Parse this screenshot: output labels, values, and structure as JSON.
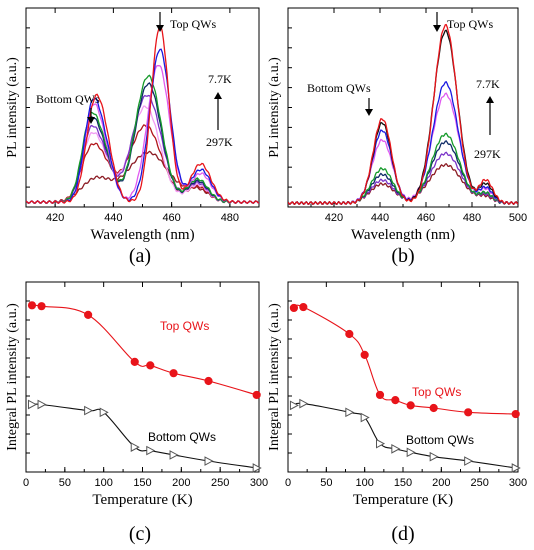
{
  "colors": {
    "red": "#e8141a",
    "red_dark": "#b1151b",
    "blue": "#1a1ae0",
    "blue_mid": "#4b61f0",
    "green": "#159a2a",
    "navy": "#0e2a66",
    "purple": "#7a33c8",
    "magenta": "#e05bf0",
    "pink": "#f29bf4",
    "maroon": "#8c1c24",
    "black": "#111111",
    "grey": "#333333"
  },
  "chart_data": [
    {
      "type": "line",
      "caption": "(a)",
      "xlabel": "Wavelength (nm)",
      "ylabel": "PL intensity (a.u.)",
      "xlim": [
        410,
        490
      ],
      "ylim": [
        0,
        1
      ],
      "xticks": [
        420,
        440,
        460,
        480
      ],
      "annotations": {
        "top": "Top QWs",
        "bottom": "Bottom QWs",
        "temp_high": "7.7K",
        "temp_low": "297K"
      },
      "temperature_order": "7.7K at top to 297K at bottom (arrow)",
      "series_colors": [
        "red",
        "blue",
        "magenta",
        "green",
        "navy",
        "purple",
        "pink",
        "red_dark",
        "maroon"
      ],
      "series": [
        {
          "color": "red",
          "baseline": 0.01,
          "peaks": [
            [
              433,
              0.4,
              2.8
            ],
            [
              437,
              0.3,
              3.0
            ],
            [
              456,
              0.92,
              3.0
            ],
            [
              470,
              0.2,
              3.5
            ]
          ]
        },
        {
          "color": "blue",
          "baseline": 0.01,
          "peaks": [
            [
              432.5,
              0.44,
              2.8
            ],
            [
              437,
              0.26,
              3.0
            ],
            [
              456,
              0.8,
              3.5
            ],
            [
              470,
              0.17,
              3.5
            ]
          ]
        },
        {
          "color": "magenta",
          "baseline": 0.01,
          "peaks": [
            [
              432.5,
              0.42,
              2.8
            ],
            [
              437,
              0.24,
              3.0
            ],
            [
              455.5,
              0.72,
              3.8
            ],
            [
              470,
              0.15,
              3.5
            ]
          ]
        },
        {
          "color": "green",
          "baseline": 0.01,
          "peaks": [
            [
              432,
              0.4,
              3.0
            ],
            [
              437,
              0.22,
              3.0
            ],
            [
              452,
              0.66,
              4.5
            ],
            [
              469,
              0.12,
              3.5
            ]
          ]
        },
        {
          "color": "navy",
          "baseline": 0.01,
          "peaks": [
            [
              432,
              0.38,
              3.0
            ],
            [
              437,
              0.21,
              3.0
            ],
            [
              452,
              0.62,
              4.5
            ],
            [
              469,
              0.11,
              3.5
            ]
          ]
        },
        {
          "color": "purple",
          "baseline": 0.01,
          "peaks": [
            [
              432,
              0.34,
              3.0
            ],
            [
              437,
              0.19,
              3.0
            ],
            [
              451.5,
              0.56,
              5.0
            ],
            [
              469,
              0.1,
              3.5
            ]
          ]
        },
        {
          "color": "pink",
          "baseline": 0.01,
          "peaks": [
            [
              432,
              0.3,
              3.2
            ],
            [
              437,
              0.17,
              3.2
            ],
            [
              451,
              0.5,
              5.0
            ],
            [
              469,
              0.09,
              3.5
            ]
          ]
        },
        {
          "color": "red_dark",
          "baseline": 0.01,
          "peaks": [
            [
              432,
              0.24,
              3.5
            ],
            [
              437,
              0.14,
              3.5
            ],
            [
              451,
              0.4,
              5.5
            ],
            [
              469,
              0.08,
              3.5
            ]
          ]
        },
        {
          "color": "maroon",
          "baseline": 0.01,
          "peaks": [
            [
              434,
              0.12,
              5.0
            ],
            [
              452,
              0.26,
              7.0
            ],
            [
              469,
              0.06,
              4.0
            ]
          ]
        }
      ]
    },
    {
      "type": "line",
      "caption": "(b)",
      "xlabel": "Wavelength (nm)",
      "ylabel": "PL intensity (a.u.)",
      "xlim": [
        400,
        500
      ],
      "ylim": [
        0,
        1
      ],
      "xticks": [
        420,
        440,
        460,
        480,
        500
      ],
      "annotations": {
        "top": "Top QWs",
        "bottom": "Bottom QWs",
        "temp_high": "7.7K",
        "temp_low": "297K"
      },
      "temperature_order": "7.7K at top to 297K at bottom (arrow)",
      "series": [
        {
          "color": "red",
          "baseline": 0.005,
          "peaks": [
            [
              441,
              0.44,
              4.0
            ],
            [
              468.5,
              0.93,
              5.0
            ],
            [
              486,
              0.12,
              3.0
            ]
          ]
        },
        {
          "color": "black",
          "baseline": 0.005,
          "peaks": [
            [
              441,
              0.42,
              4.0
            ],
            [
              468.5,
              0.9,
              5.2
            ],
            [
              486,
              0.1,
              3.0
            ]
          ]
        },
        {
          "color": "blue",
          "baseline": 0.005,
          "peaks": [
            [
              441,
              0.38,
              4.2
            ],
            [
              468.5,
              0.63,
              5.5
            ],
            [
              486,
              0.08,
              3.0
            ]
          ]
        },
        {
          "color": "magenta",
          "baseline": 0.005,
          "peaks": [
            [
              441,
              0.33,
              4.4
            ],
            [
              468.5,
              0.57,
              5.8
            ],
            [
              486,
              0.07,
              3.0
            ]
          ]
        },
        {
          "color": "green",
          "baseline": 0.005,
          "peaks": [
            [
              441,
              0.18,
              4.6
            ],
            [
              468.5,
              0.36,
              6.0
            ],
            [
              486,
              0.05,
              3.0
            ]
          ]
        },
        {
          "color": "navy",
          "baseline": 0.005,
          "peaks": [
            [
              441,
              0.15,
              4.8
            ],
            [
              468.5,
              0.32,
              6.2
            ],
            [
              486,
              0.05,
              3.0
            ]
          ]
        },
        {
          "color": "purple",
          "baseline": 0.005,
          "peaks": [
            [
              441,
              0.12,
              5.0
            ],
            [
              468.5,
              0.26,
              6.5
            ],
            [
              486,
              0.04,
              3.0
            ]
          ]
        },
        {
          "color": "maroon",
          "baseline": 0.005,
          "peaks": [
            [
              441,
              0.1,
              5.2
            ],
            [
              468.5,
              0.2,
              7.0
            ],
            [
              486,
              0.03,
              3.0
            ]
          ]
        }
      ]
    },
    {
      "type": "line",
      "caption": "(c)",
      "xlabel": "Temperature (K)",
      "ylabel": "Integral PL intensity (a.u.)",
      "xlim": [
        0,
        300
      ],
      "ylim": [
        0,
        1
      ],
      "xticks": [
        0,
        50,
        100,
        150,
        200,
        250,
        300
      ],
      "series": [
        {
          "name": "Top QWs",
          "color": "red",
          "marker": "filled-circle",
          "x": [
            7.7,
            20,
            80,
            140,
            160,
            190,
            235,
            297
          ],
          "y": [
            0.935,
            0.93,
            0.88,
            0.61,
            0.59,
            0.545,
            0.5,
            0.42
          ]
        },
        {
          "name": "Bottom QWs",
          "color": "black",
          "marker": "open-triangle",
          "x": [
            7.7,
            20,
            80,
            100,
            140,
            160,
            190,
            235,
            297
          ],
          "y": [
            0.365,
            0.365,
            0.33,
            0.32,
            0.12,
            0.1,
            0.075,
            0.04,
            0.0
          ]
        }
      ]
    },
    {
      "type": "line",
      "caption": "(d)",
      "xlabel": "Temperature (K)",
      "ylabel": "Integral PL intensity (a.u.)",
      "xlim": [
        0,
        300
      ],
      "ylim": [
        0,
        1
      ],
      "xticks": [
        0,
        50,
        100,
        150,
        200,
        250,
        300
      ],
      "series": [
        {
          "name": "Top QWs",
          "color": "red",
          "marker": "filled-circle",
          "x": [
            7.7,
            20,
            80,
            100,
            120,
            140,
            160,
            190,
            235,
            297
          ],
          "y": [
            0.92,
            0.925,
            0.77,
            0.65,
            0.42,
            0.39,
            0.36,
            0.345,
            0.32,
            0.31
          ]
        },
        {
          "name": "Bottom QWs",
          "color": "black",
          "marker": "open-triangle",
          "x": [
            7.7,
            20,
            80,
            100,
            120,
            140,
            160,
            190,
            235,
            297
          ],
          "y": [
            0.36,
            0.37,
            0.32,
            0.29,
            0.14,
            0.11,
            0.09,
            0.065,
            0.04,
            0.0
          ]
        }
      ]
    }
  ]
}
